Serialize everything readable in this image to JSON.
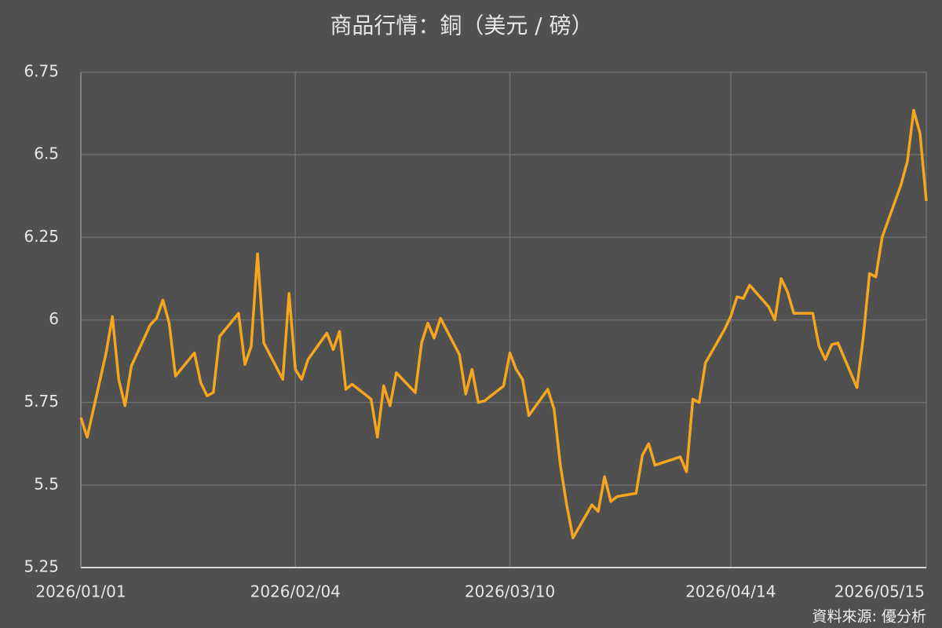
{
  "chart_data": {
    "type": "line",
    "title": "商品行情：銅（美元 / 磅）",
    "source": "資料來源: 優分析",
    "x": [
      "2026/01/01",
      "2026/01/02",
      "2026/01/05",
      "2026/01/06",
      "2026/01/07",
      "2026/01/08",
      "2026/01/09",
      "2026/01/12",
      "2026/01/13",
      "2026/01/14",
      "2026/01/15",
      "2026/01/16",
      "2026/01/19",
      "2026/01/20",
      "2026/01/21",
      "2026/01/22",
      "2026/01/23",
      "2026/01/26",
      "2026/01/27",
      "2026/01/28",
      "2026/01/29",
      "2026/01/30",
      "2026/02/02",
      "2026/02/03",
      "2026/02/04",
      "2026/02/05",
      "2026/02/06",
      "2026/02/09",
      "2026/02/10",
      "2026/02/11",
      "2026/02/12",
      "2026/02/13",
      "2026/02/16",
      "2026/02/17",
      "2026/02/18",
      "2026/02/19",
      "2026/02/20",
      "2026/02/23",
      "2026/02/24",
      "2026/02/25",
      "2026/02/26",
      "2026/02/27",
      "2026/03/02",
      "2026/03/03",
      "2026/03/04",
      "2026/03/05",
      "2026/03/06",
      "2026/03/09",
      "2026/03/10",
      "2026/03/11",
      "2026/03/12",
      "2026/03/13",
      "2026/03/16",
      "2026/03/17",
      "2026/03/18",
      "2026/03/19",
      "2026/03/20",
      "2026/03/23",
      "2026/03/24",
      "2026/03/25",
      "2026/03/26",
      "2026/03/27",
      "2026/03/30",
      "2026/03/31",
      "2026/04/01",
      "2026/04/02",
      "2026/04/06",
      "2026/04/07",
      "2026/04/08",
      "2026/04/09",
      "2026/04/10",
      "2026/04/13",
      "2026/04/14",
      "2026/04/15",
      "2026/04/16",
      "2026/04/17",
      "2026/04/20",
      "2026/04/21",
      "2026/04/22",
      "2026/04/23",
      "2026/04/24",
      "2026/04/27",
      "2026/04/28",
      "2026/04/29",
      "2026/04/30",
      "2026/05/01",
      "2026/05/04",
      "2026/05/05",
      "2026/05/06",
      "2026/05/07",
      "2026/05/08",
      "2026/05/11",
      "2026/05/12",
      "2026/05/13",
      "2026/05/14",
      "2026/05/15"
    ],
    "series": [
      {
        "color": "#f5a61e",
        "values": [
          5.704,
          5.645,
          5.9,
          6.01,
          5.82,
          5.74,
          5.86,
          5.985,
          6.005,
          6.06,
          5.99,
          5.83,
          5.9,
          5.81,
          5.77,
          5.78,
          5.95,
          6.02,
          5.865,
          5.92,
          6.2,
          5.93,
          5.82,
          6.08,
          5.85,
          5.82,
          5.88,
          5.96,
          5.91,
          5.965,
          5.79,
          5.805,
          5.76,
          5.645,
          5.8,
          5.74,
          5.84,
          5.78,
          5.93,
          5.99,
          5.945,
          6.005,
          5.895,
          5.775,
          5.85,
          5.75,
          5.755,
          5.8,
          5.9,
          5.85,
          5.82,
          5.71,
          5.79,
          5.73,
          5.56,
          5.44,
          5.34,
          5.44,
          5.42,
          5.525,
          5.45,
          5.465,
          5.475,
          5.59,
          5.625,
          5.56,
          5.585,
          5.54,
          5.76,
          5.75,
          5.87,
          5.97,
          6.01,
          6.07,
          6.065,
          6.105,
          6.04,
          6.0,
          6.125,
          6.085,
          6.02,
          6.02,
          5.92,
          5.88,
          5.925,
          5.93,
          5.795,
          5.945,
          6.14,
          6.13,
          6.25,
          6.41,
          6.48,
          6.635,
          6.565,
          6.36
        ]
      }
    ],
    "xlim": [
      "2026/01/01",
      "2026/05/15"
    ],
    "xticks": [
      "2026/01/01",
      "2026/02/04",
      "2026/03/10",
      "2026/04/14",
      "2026/05/15"
    ],
    "ylim": [
      5.25,
      6.75
    ],
    "yticks": [
      5.25,
      5.5,
      5.75,
      6,
      6.25,
      6.5,
      6.75
    ],
    "grid": true
  }
}
